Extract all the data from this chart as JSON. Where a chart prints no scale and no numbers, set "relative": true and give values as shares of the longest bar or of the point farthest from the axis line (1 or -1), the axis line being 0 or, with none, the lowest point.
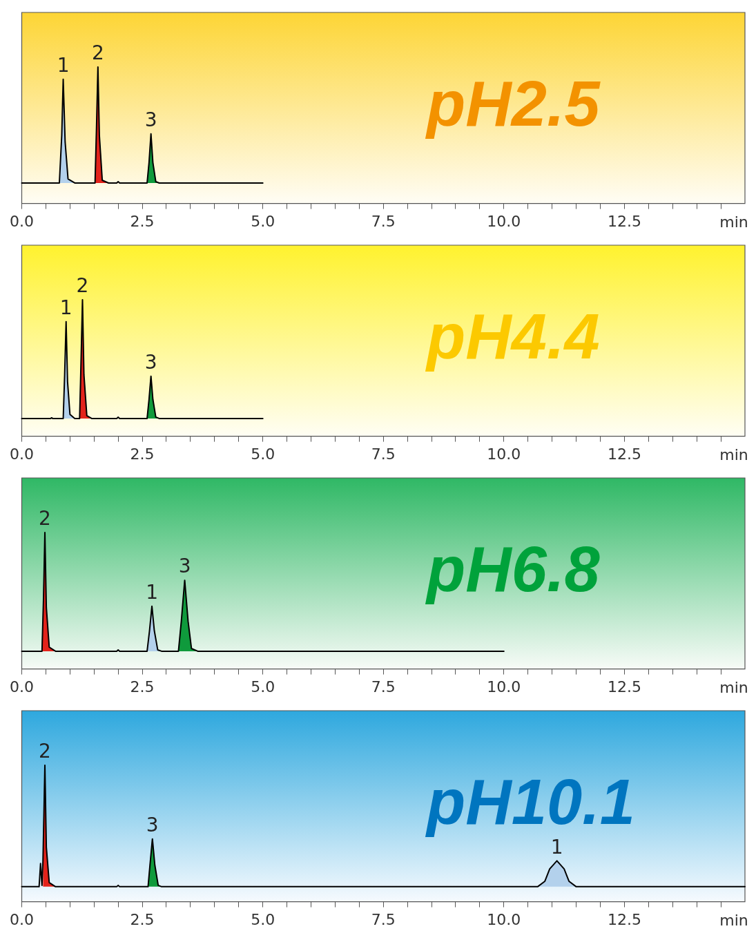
{
  "chart_data": [
    {
      "type": "line",
      "relative": true,
      "xlabel": "min",
      "tick_labels": "x",
      "xlim": [
        0,
        15
      ],
      "xticks": [
        {
          "value": 0,
          "label": "0.0"
        },
        {
          "value": 0.5,
          "label": null
        },
        {
          "value": 1,
          "label": null
        },
        {
          "value": 1.5,
          "label": null
        },
        {
          "value": 2,
          "label": null
        },
        2.5,
        {
          "value": 3,
          "label": null
        },
        {
          "value": 3.5,
          "label": null
        },
        {
          "value": 4,
          "label": null
        },
        {
          "value": 4.5,
          "label": null
        },
        {
          "value": 5,
          "label": "5.0"
        },
        {
          "value": 5.5,
          "label": null
        },
        {
          "value": 6,
          "label": null
        },
        {
          "value": 6.5,
          "label": null
        },
        {
          "value": 7,
          "label": null
        },
        7.5,
        {
          "value": 8,
          "label": null
        },
        {
          "value": 8.5,
          "label": null
        },
        {
          "value": 9,
          "label": null
        },
        {
          "value": 9.5,
          "label": null
        },
        {
          "value": 10,
          "label": "10.0"
        },
        {
          "value": 10.5,
          "label": null
        },
        {
          "value": 11,
          "label": null
        },
        {
          "value": 11.5,
          "label": null
        },
        {
          "value": 12,
          "label": null
        },
        12.5,
        {
          "value": 13,
          "label": null
        },
        {
          "value": 13.5,
          "label": null
        },
        {
          "value": 14,
          "label": null
        },
        {
          "value": 14.5,
          "label": null
        }
      ],
      "series": [
        {
          "type": "line",
          "color": "#000000",
          "x": [
            0,
            0.78,
            0.83,
            0.86,
            0.9,
            0.96,
            1.1,
            1.52,
            1.55,
            1.58,
            1.61,
            1.67,
            1.8,
            1.97,
            2.0,
            2.03,
            2.6,
            2.64,
            2.68,
            2.72,
            2.78,
            2.85,
            5
          ],
          "values": [
            0.15,
            0.15,
            0.5,
            0.91,
            0.45,
            0.18,
            0.15,
            0.15,
            0.55,
            1,
            0.5,
            0.17,
            0.15,
            0.15,
            0.16,
            0.15,
            0.15,
            0.3,
            0.51,
            0.3,
            0.16,
            0.15,
            0.15
          ]
        },
        {
          "type": "area",
          "color": "#b3d1ec",
          "x": [
            0.78,
            0.83,
            0.86,
            0.9,
            0.96,
            1.1
          ],
          "values": [
            0.15,
            0.5,
            0.91,
            0.45,
            0.18,
            0.15
          ]
        },
        {
          "type": "area",
          "color": "#e3231b",
          "x": [
            1.52,
            1.55,
            1.58,
            1.61,
            1.67,
            1.8
          ],
          "values": [
            0.15,
            0.55,
            1,
            0.5,
            0.17,
            0.15
          ]
        },
        {
          "type": "area",
          "color": "#0f9a3c",
          "x": [
            2.6,
            2.64,
            2.68,
            2.72,
            2.78,
            2.85
          ],
          "values": [
            0.15,
            0.3,
            0.51,
            0.3,
            0.16,
            0.15
          ]
        }
      ],
      "annotations": [
        "pH2.5",
        {
          "text": "1",
          "x": 0.86,
          "y": 0.91
        },
        {
          "text": "2",
          "x": 1.58,
          "y": 1
        },
        {
          "text": "3",
          "x": 2.68,
          "y": 0.51
        }
      ]
    },
    {
      "type": "line",
      "relative": true,
      "xlabel": "min",
      "tick_labels": "x",
      "xlim": [
        0,
        15
      ],
      "xticks": [
        {
          "value": 0,
          "label": "0.0"
        },
        {
          "value": 0.5,
          "label": null
        },
        {
          "value": 1,
          "label": null
        },
        {
          "value": 1.5,
          "label": null
        },
        {
          "value": 2,
          "label": null
        },
        2.5,
        {
          "value": 3,
          "label": null
        },
        {
          "value": 3.5,
          "label": null
        },
        {
          "value": 4,
          "label": null
        },
        {
          "value": 4.5,
          "label": null
        },
        {
          "value": 5,
          "label": "5.0"
        },
        {
          "value": 5.5,
          "label": null
        },
        {
          "value": 6,
          "label": null
        },
        {
          "value": 6.5,
          "label": null
        },
        {
          "value": 7,
          "label": null
        },
        7.5,
        {
          "value": 8,
          "label": null
        },
        {
          "value": 8.5,
          "label": null
        },
        {
          "value": 9,
          "label": null
        },
        {
          "value": 9.5,
          "label": null
        },
        {
          "value": 10,
          "label": "10.0"
        },
        {
          "value": 10.5,
          "label": null
        },
        {
          "value": 11,
          "label": null
        },
        {
          "value": 11.5,
          "label": null
        },
        {
          "value": 12,
          "label": null
        },
        12.5,
        {
          "value": 13,
          "label": null
        },
        {
          "value": 13.5,
          "label": null
        },
        {
          "value": 14,
          "label": null
        },
        {
          "value": 14.5,
          "label": null
        }
      ],
      "series": [
        {
          "type": "line",
          "color": "#000000",
          "x": [
            0,
            0.6,
            0.62,
            0.64,
            0.86,
            0.89,
            0.92,
            0.95,
            1.0,
            1.1,
            1.2,
            1.23,
            1.26,
            1.29,
            1.35,
            1.45,
            1.97,
            2.0,
            2.03,
            2.6,
            2.64,
            2.68,
            2.72,
            2.78,
            2.85,
            5
          ],
          "values": [
            0.13,
            0.13,
            0.135,
            0.13,
            0.13,
            0.45,
            0.84,
            0.4,
            0.16,
            0.13,
            0.13,
            0.55,
            1,
            0.45,
            0.15,
            0.13,
            0.13,
            0.14,
            0.13,
            0.13,
            0.27,
            0.44,
            0.27,
            0.14,
            0.13,
            0.13
          ]
        },
        {
          "type": "area",
          "color": "#b3d1ec",
          "x": [
            0.86,
            0.89,
            0.92,
            0.95,
            1.0,
            1.1
          ],
          "values": [
            0.13,
            0.45,
            0.84,
            0.4,
            0.16,
            0.13
          ]
        },
        {
          "type": "area",
          "color": "#e3231b",
          "x": [
            1.2,
            1.23,
            1.26,
            1.29,
            1.35,
            1.45
          ],
          "values": [
            0.13,
            0.55,
            1,
            0.45,
            0.15,
            0.13
          ]
        },
        {
          "type": "area",
          "color": "#0f9a3c",
          "x": [
            2.6,
            2.64,
            2.68,
            2.72,
            2.78,
            2.85
          ],
          "values": [
            0.13,
            0.27,
            0.44,
            0.27,
            0.14,
            0.13
          ]
        }
      ],
      "annotations": [
        "pH4.4",
        {
          "text": "1",
          "x": 0.92,
          "y": 0.84
        },
        {
          "text": "2",
          "x": 1.26,
          "y": 1
        },
        {
          "text": "3",
          "x": 2.68,
          "y": 0.44
        }
      ]
    },
    {
      "type": "line",
      "relative": true,
      "xlabel": "min",
      "tick_labels": "x",
      "xlim": [
        0,
        15
      ],
      "xticks": [
        {
          "value": 0,
          "label": "0.0"
        },
        {
          "value": 0.5,
          "label": null
        },
        {
          "value": 1,
          "label": null
        },
        {
          "value": 1.5,
          "label": null
        },
        {
          "value": 2,
          "label": null
        },
        2.5,
        {
          "value": 3,
          "label": null
        },
        {
          "value": 3.5,
          "label": null
        },
        {
          "value": 4,
          "label": null
        },
        {
          "value": 4.5,
          "label": null
        },
        {
          "value": 5,
          "label": "5.0"
        },
        {
          "value": 5.5,
          "label": null
        },
        {
          "value": 6,
          "label": null
        },
        {
          "value": 6.5,
          "label": null
        },
        {
          "value": 7,
          "label": null
        },
        7.5,
        {
          "value": 8,
          "label": null
        },
        {
          "value": 8.5,
          "label": null
        },
        {
          "value": 9,
          "label": null
        },
        {
          "value": 9.5,
          "label": null
        },
        {
          "value": 10,
          "label": "10.0"
        },
        {
          "value": 10.5,
          "label": null
        },
        {
          "value": 11,
          "label": null
        },
        {
          "value": 11.5,
          "label": null
        },
        {
          "value": 12,
          "label": null
        },
        12.5,
        {
          "value": 13,
          "label": null
        },
        {
          "value": 13.5,
          "label": null
        },
        {
          "value": 14,
          "label": null
        },
        {
          "value": 14.5,
          "label": null
        }
      ],
      "series": [
        {
          "type": "line",
          "color": "#000000",
          "x": [
            0,
            0.42,
            0.45,
            0.48,
            0.51,
            0.57,
            0.7,
            1.97,
            2.0,
            2.03,
            2.6,
            2.65,
            2.7,
            2.75,
            2.82,
            2.9,
            3.25,
            3.31,
            3.38,
            3.45,
            3.52,
            3.65,
            10
          ],
          "values": [
            0.13,
            0.13,
            0.5,
            1,
            0.45,
            0.16,
            0.13,
            0.13,
            0.14,
            0.13,
            0.13,
            0.28,
            0.46,
            0.28,
            0.14,
            0.13,
            0.13,
            0.35,
            0.65,
            0.35,
            0.15,
            0.13,
            0.13
          ]
        },
        {
          "type": "area",
          "color": "#e3231b",
          "x": [
            0.42,
            0.45,
            0.48,
            0.51,
            0.57,
            0.7
          ],
          "values": [
            0.13,
            0.5,
            1,
            0.45,
            0.16,
            0.13
          ]
        },
        {
          "type": "area",
          "color": "#b3d1ec",
          "x": [
            2.6,
            2.65,
            2.7,
            2.75,
            2.82,
            2.9
          ],
          "values": [
            0.13,
            0.28,
            0.46,
            0.28,
            0.14,
            0.13
          ]
        },
        {
          "type": "area",
          "color": "#0f9a3c",
          "x": [
            3.25,
            3.31,
            3.38,
            3.45,
            3.52,
            3.65
          ],
          "values": [
            0.13,
            0.35,
            0.65,
            0.35,
            0.15,
            0.13
          ]
        }
      ],
      "annotations": [
        "pH6.8",
        {
          "text": "2",
          "x": 0.48,
          "y": 1
        },
        {
          "text": "1",
          "x": 2.7,
          "y": 0.46
        },
        {
          "text": "3",
          "x": 3.38,
          "y": 0.65
        }
      ]
    },
    {
      "type": "line",
      "relative": true,
      "xlabel": "min",
      "tick_labels": "x",
      "xlim": [
        0,
        15
      ],
      "xticks": [
        {
          "value": 0,
          "label": "0.0"
        },
        {
          "value": 0.5,
          "label": null
        },
        {
          "value": 1,
          "label": null
        },
        {
          "value": 1.5,
          "label": null
        },
        {
          "value": 2,
          "label": null
        },
        2.5,
        {
          "value": 3,
          "label": null
        },
        {
          "value": 3.5,
          "label": null
        },
        {
          "value": 4,
          "label": null
        },
        {
          "value": 4.5,
          "label": null
        },
        {
          "value": 5,
          "label": "5.0"
        },
        {
          "value": 5.5,
          "label": null
        },
        {
          "value": 6,
          "label": null
        },
        {
          "value": 6.5,
          "label": null
        },
        {
          "value": 7,
          "label": null
        },
        7.5,
        {
          "value": 8,
          "label": null
        },
        {
          "value": 8.5,
          "label": null
        },
        {
          "value": 9,
          "label": null
        },
        {
          "value": 9.5,
          "label": null
        },
        {
          "value": 10,
          "label": "10.0"
        },
        {
          "value": 10.5,
          "label": null
        },
        {
          "value": 11,
          "label": null
        },
        {
          "value": 11.5,
          "label": null
        },
        {
          "value": 12,
          "label": null
        },
        12.5,
        {
          "value": 13,
          "label": null
        },
        {
          "value": 13.5,
          "label": null
        },
        {
          "value": 14,
          "label": null
        },
        {
          "value": 14.5,
          "label": null
        }
      ],
      "series": [
        {
          "type": "line",
          "color": "#000000",
          "x": [
            0,
            0.36,
            0.39,
            0.42,
            0.44,
            0.48,
            0.51,
            0.57,
            0.7,
            1.97,
            2.0,
            2.03,
            2.62,
            2.66,
            2.71,
            2.76,
            2.83,
            2.9,
            10.7,
            10.85,
            10.95,
            11.1,
            11.25,
            11.35,
            11.5,
            15
          ],
          "values": [
            0.11,
            0.11,
            0.28,
            0.12,
            0.3,
            1,
            0.4,
            0.14,
            0.11,
            0.11,
            0.12,
            0.11,
            0.11,
            0.27,
            0.46,
            0.27,
            0.12,
            0.11,
            0.11,
            0.15,
            0.24,
            0.3,
            0.24,
            0.15,
            0.11,
            0.11
          ]
        },
        {
          "type": "area",
          "color": "#e3231b",
          "x": [
            0.44,
            0.48,
            0.51,
            0.57,
            0.7
          ],
          "values": [
            0.3,
            1,
            0.4,
            0.14,
            0.11
          ]
        },
        {
          "type": "area",
          "color": "#0f9a3c",
          "x": [
            2.62,
            2.66,
            2.71,
            2.76,
            2.83,
            2.9
          ],
          "values": [
            0.11,
            0.27,
            0.46,
            0.27,
            0.12,
            0.11
          ]
        },
        {
          "type": "area",
          "color": "#b3d1ec",
          "x": [
            10.7,
            10.85,
            10.95,
            11.1,
            11.25,
            11.35,
            11.5
          ],
          "values": [
            0.11,
            0.15,
            0.24,
            0.3,
            0.24,
            0.15,
            0.11
          ]
        }
      ],
      "annotations": [
        "pH10.1",
        {
          "text": "2",
          "x": 0.48,
          "y": 1
        },
        {
          "text": "3",
          "x": 2.71,
          "y": 0.46
        },
        {
          "text": "1",
          "x": 11.1,
          "y": 0.3
        }
      ]
    }
  ]
}
